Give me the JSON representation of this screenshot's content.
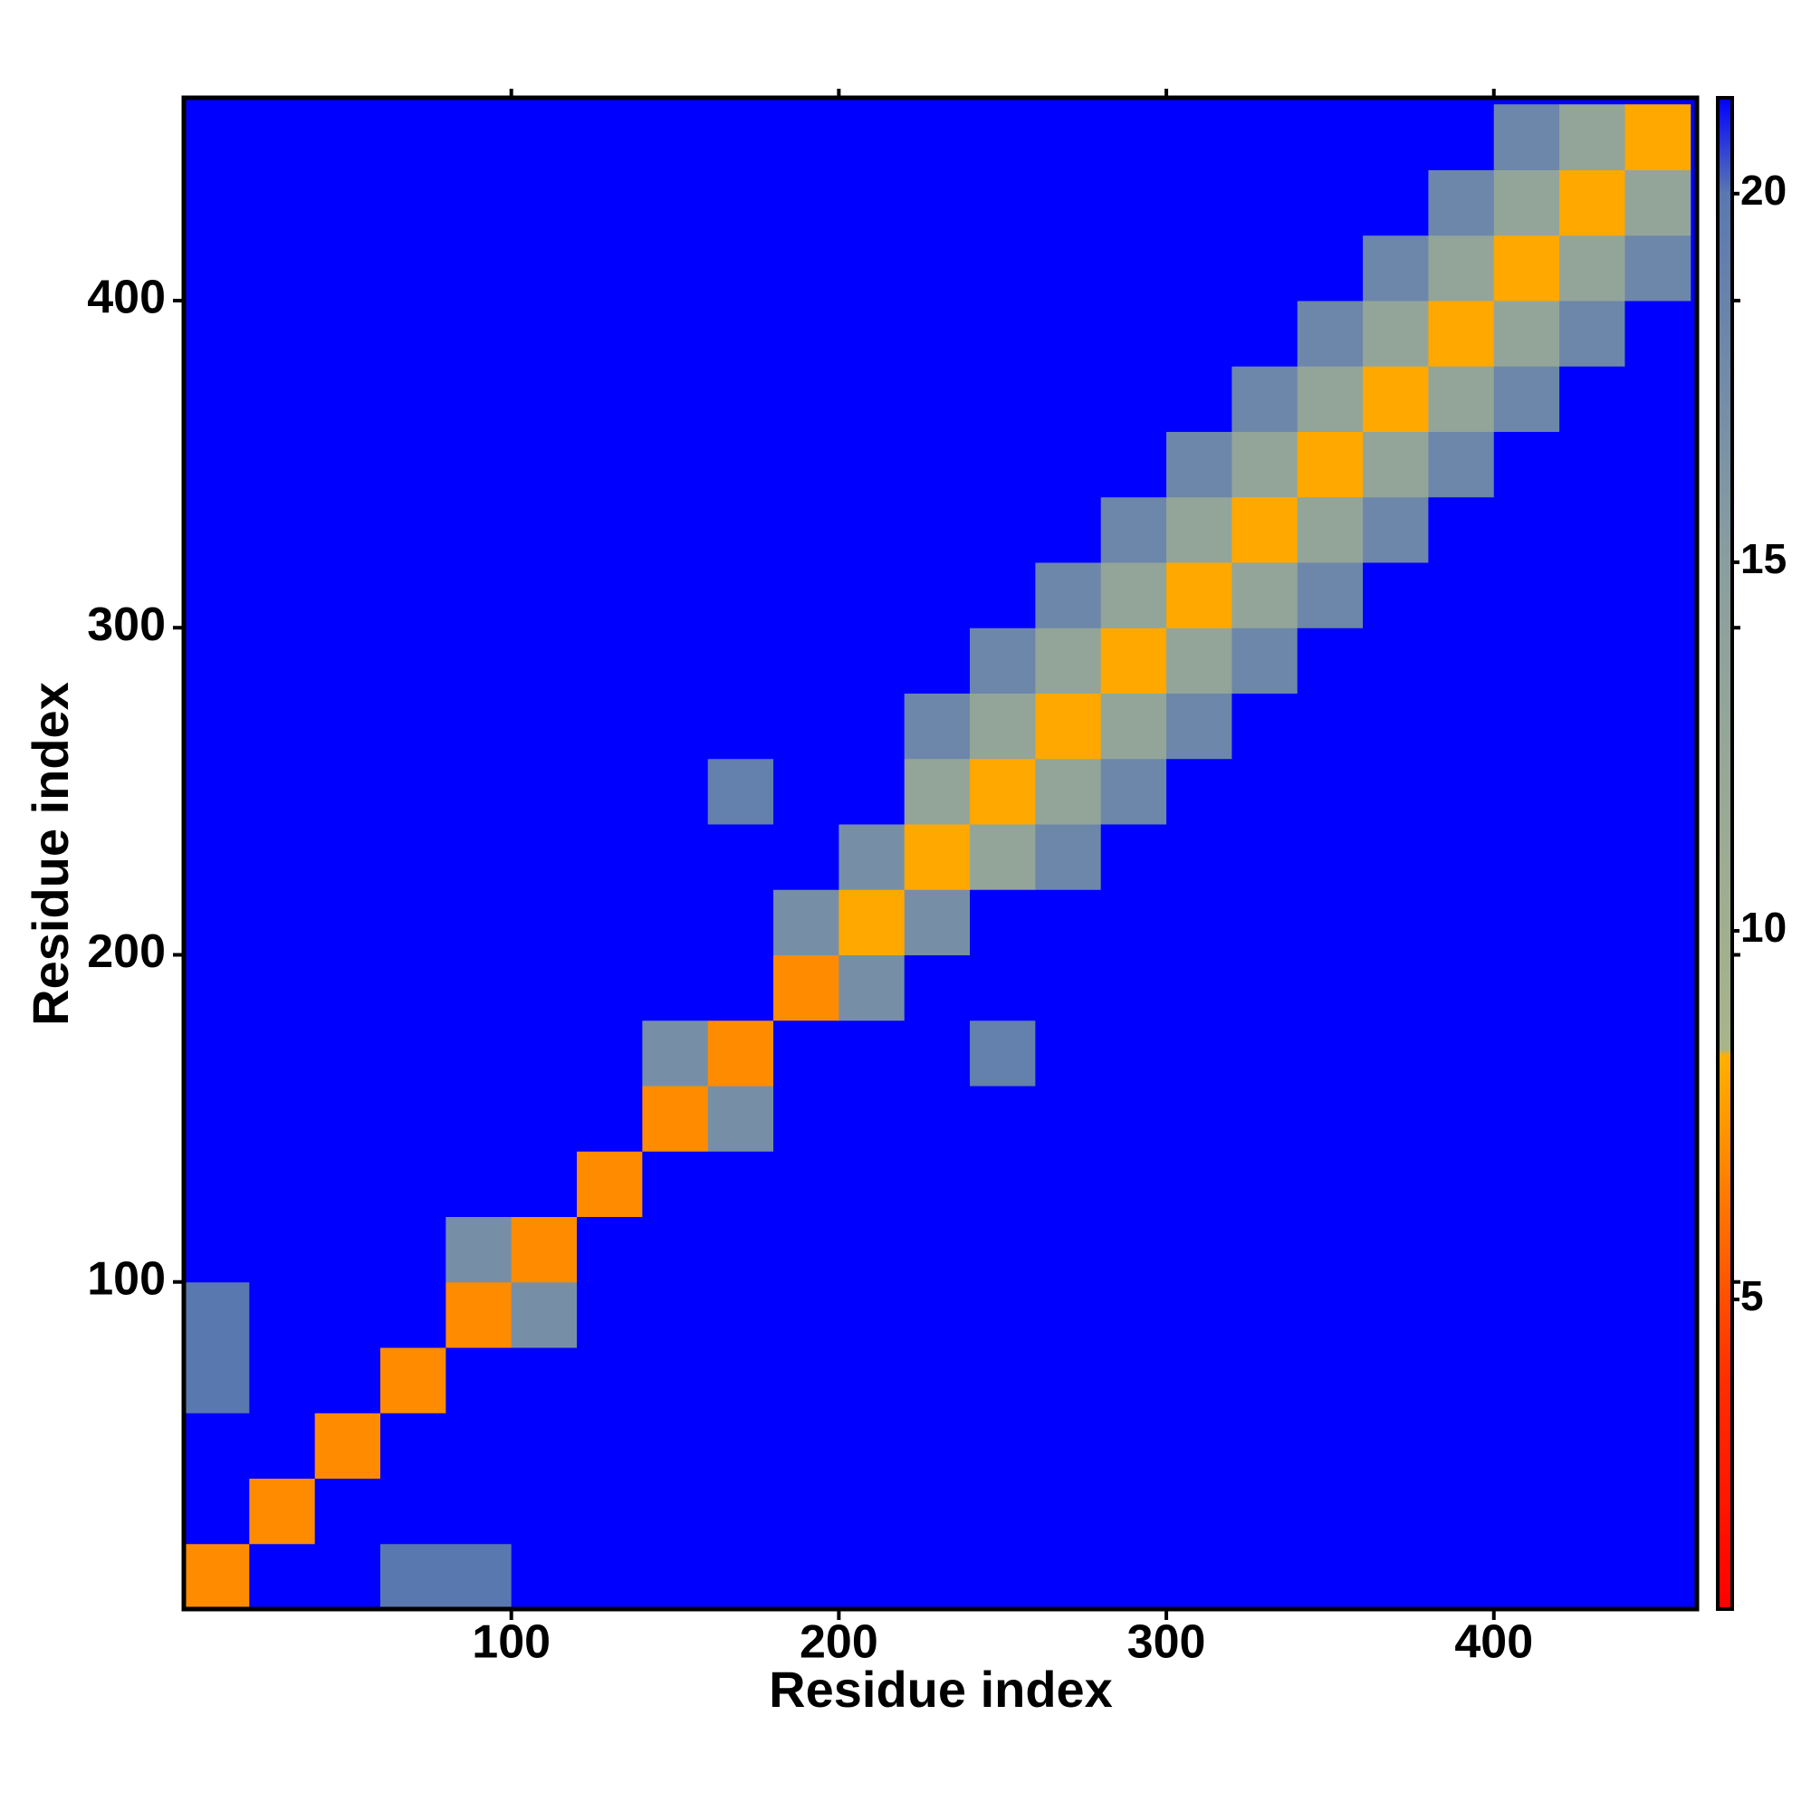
{
  "chart_data": {
    "type": "heatmap",
    "x_label": "Residue index",
    "y_label": "Residue index",
    "xlim": [
      0,
      462
    ],
    "ylim": [
      0,
      462
    ],
    "xticks": [
      100,
      200,
      300,
      400
    ],
    "yticks": [
      100,
      200,
      300,
      400
    ],
    "x": [
      10,
      30,
      50,
      70,
      90,
      110,
      130,
      150,
      170,
      190,
      210,
      230,
      250,
      270,
      290,
      310,
      330,
      350,
      370,
      390,
      410,
      430,
      450
    ],
    "y": [
      10,
      30,
      50,
      70,
      90,
      110,
      130,
      150,
      170,
      190,
      210,
      230,
      250,
      270,
      290,
      310,
      330,
      350,
      370,
      390,
      410,
      430,
      450
    ],
    "values": [
      [
        7,
        22,
        22,
        20,
        20,
        22,
        22,
        22,
        22,
        22,
        22,
        22,
        22,
        22,
        22,
        22,
        22,
        22,
        22,
        22,
        22,
        22,
        22
      ],
      [
        22,
        7,
        22,
        22,
        22,
        22,
        22,
        22,
        22,
        22,
        22,
        22,
        22,
        22,
        22,
        22,
        22,
        22,
        22,
        22,
        22,
        22,
        22
      ],
      [
        22,
        22,
        7,
        22,
        22,
        22,
        22,
        22,
        22,
        22,
        22,
        22,
        22,
        22,
        22,
        22,
        22,
        22,
        22,
        22,
        22,
        22,
        22
      ],
      [
        20,
        22,
        22,
        7,
        22,
        22,
        22,
        22,
        22,
        22,
        22,
        22,
        22,
        22,
        22,
        22,
        22,
        22,
        22,
        22,
        22,
        22,
        22
      ],
      [
        20,
        22,
        22,
        22,
        7,
        17,
        22,
        22,
        22,
        22,
        22,
        22,
        22,
        22,
        22,
        22,
        22,
        22,
        22,
        22,
        22,
        22,
        22
      ],
      [
        22,
        22,
        22,
        22,
        17,
        7,
        22,
        22,
        22,
        22,
        22,
        22,
        22,
        22,
        22,
        22,
        22,
        22,
        22,
        22,
        22,
        22,
        22
      ],
      [
        22,
        22,
        22,
        22,
        22,
        22,
        7,
        22,
        22,
        22,
        22,
        22,
        22,
        22,
        22,
        22,
        22,
        22,
        22,
        22,
        22,
        22,
        22
      ],
      [
        22,
        22,
        22,
        22,
        22,
        22,
        22,
        7,
        17,
        22,
        22,
        22,
        22,
        22,
        22,
        22,
        22,
        22,
        22,
        22,
        22,
        22,
        22
      ],
      [
        22,
        22,
        22,
        22,
        22,
        22,
        22,
        17,
        7,
        22,
        22,
        22,
        19,
        22,
        22,
        22,
        22,
        22,
        22,
        22,
        22,
        22,
        22
      ],
      [
        22,
        22,
        22,
        22,
        22,
        22,
        22,
        22,
        22,
        7,
        17,
        22,
        22,
        22,
        22,
        22,
        22,
        22,
        22,
        22,
        22,
        22,
        22
      ],
      [
        22,
        22,
        22,
        22,
        22,
        22,
        22,
        22,
        22,
        17,
        8,
        17,
        22,
        22,
        22,
        22,
        22,
        22,
        22,
        22,
        22,
        22,
        22
      ],
      [
        22,
        22,
        22,
        22,
        22,
        22,
        22,
        22,
        22,
        22,
        17,
        8,
        13,
        18,
        22,
        22,
        22,
        22,
        22,
        22,
        22,
        22,
        22
      ],
      [
        22,
        22,
        22,
        22,
        22,
        22,
        22,
        22,
        19,
        22,
        22,
        13,
        8,
        13,
        18,
        22,
        22,
        22,
        22,
        22,
        22,
        22,
        22
      ],
      [
        22,
        22,
        22,
        22,
        22,
        22,
        22,
        22,
        22,
        22,
        22,
        18,
        13,
        8,
        13,
        18,
        22,
        22,
        22,
        22,
        22,
        22,
        22
      ],
      [
        22,
        22,
        22,
        22,
        22,
        22,
        22,
        22,
        22,
        22,
        22,
        22,
        18,
        13,
        8,
        13,
        18,
        22,
        22,
        22,
        22,
        22,
        22
      ],
      [
        22,
        22,
        22,
        22,
        22,
        22,
        22,
        22,
        22,
        22,
        22,
        22,
        22,
        18,
        13,
        8,
        13,
        18,
        22,
        22,
        22,
        22,
        22
      ],
      [
        22,
        22,
        22,
        22,
        22,
        22,
        22,
        22,
        22,
        22,
        22,
        22,
        22,
        22,
        18,
        13,
        8,
        13,
        18,
        22,
        22,
        22,
        22
      ],
      [
        22,
        22,
        22,
        22,
        22,
        22,
        22,
        22,
        22,
        22,
        22,
        22,
        22,
        22,
        22,
        18,
        13,
        8,
        13,
        18,
        22,
        22,
        22
      ],
      [
        22,
        22,
        22,
        22,
        22,
        22,
        22,
        22,
        22,
        22,
        22,
        22,
        22,
        22,
        22,
        22,
        18,
        13,
        8,
        13,
        18,
        22,
        22
      ],
      [
        22,
        22,
        22,
        22,
        22,
        22,
        22,
        22,
        22,
        22,
        22,
        22,
        22,
        22,
        22,
        22,
        22,
        18,
        13,
        8,
        13,
        18,
        22
      ],
      [
        22,
        22,
        22,
        22,
        22,
        22,
        22,
        22,
        22,
        22,
        22,
        22,
        22,
        22,
        22,
        22,
        22,
        22,
        18,
        13,
        8,
        13,
        18
      ],
      [
        22,
        22,
        22,
        22,
        22,
        22,
        22,
        22,
        22,
        22,
        22,
        22,
        22,
        22,
        22,
        22,
        22,
        22,
        22,
        18,
        13,
        8,
        13
      ],
      [
        22,
        22,
        22,
        22,
        22,
        22,
        22,
        22,
        22,
        22,
        22,
        22,
        22,
        22,
        22,
        22,
        22,
        22,
        22,
        22,
        18,
        13,
        8
      ]
    ],
    "colorbar_lim": [
      0.8,
      21.3
    ],
    "colorbar_ticks": [
      5,
      10,
      15,
      20
    ],
    "colorscale": [
      [
        0.8,
        "#ff0000"
      ],
      [
        4,
        "#ff3000"
      ],
      [
        7,
        "#ff8c00"
      ],
      [
        8.3,
        "#ffb000"
      ],
      [
        8.4,
        "#a8b48a"
      ],
      [
        15,
        "#8a9ea0"
      ],
      [
        20,
        "#5a78b0"
      ],
      [
        21.3,
        "#0000ff"
      ]
    ]
  }
}
